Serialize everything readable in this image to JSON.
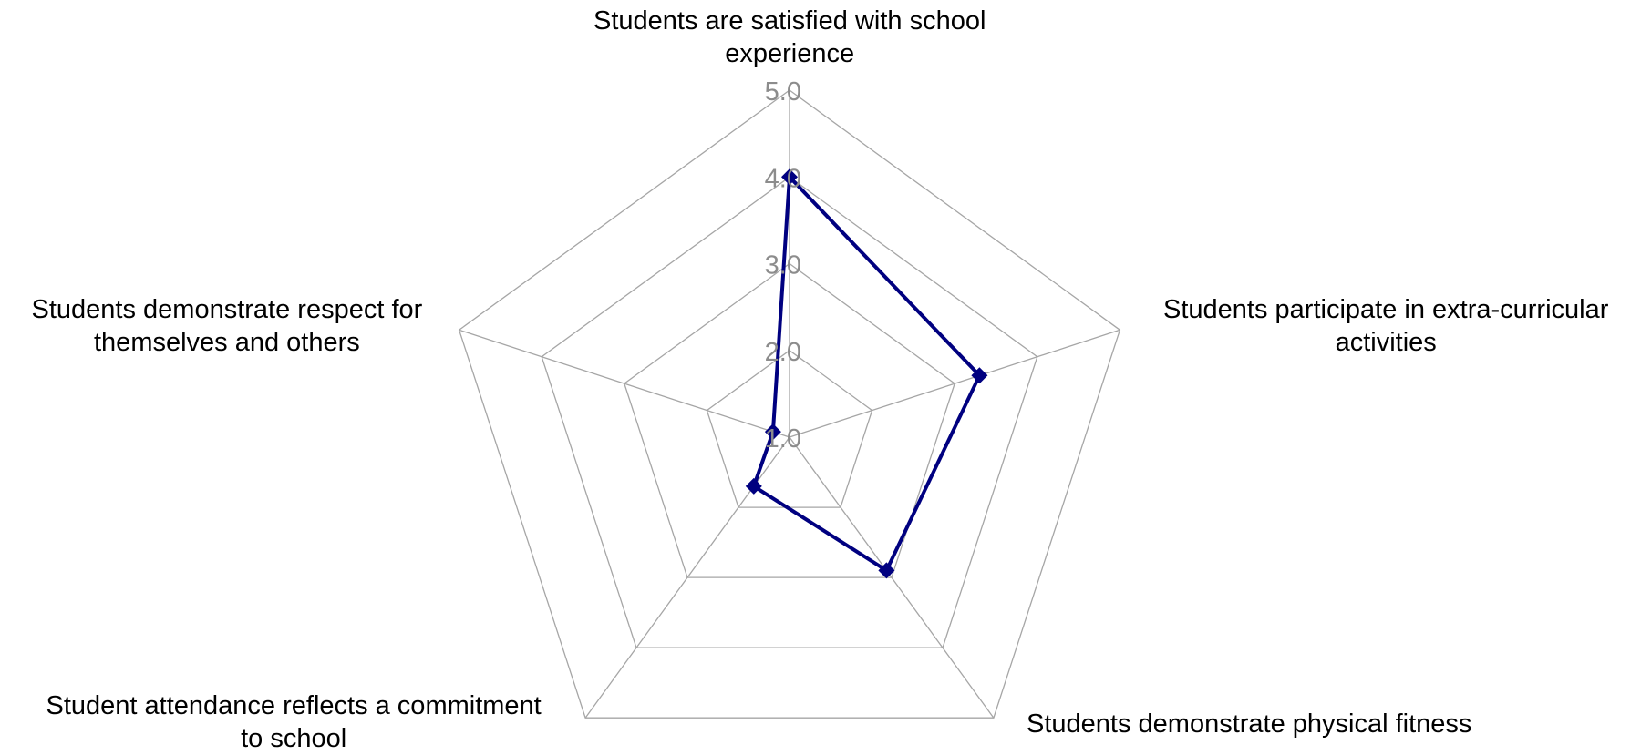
{
  "chart_data": {
    "type": "radar",
    "axes": [
      {
        "lines": [
          "Students are satisfied with school",
          "experience"
        ]
      },
      {
        "lines": [
          "Students participate in extra-curricular",
          "activities"
        ]
      },
      {
        "lines": [
          "Students demonstrate physical fitness"
        ]
      },
      {
        "lines": [
          "Student attendance reflects a commitment",
          "to school"
        ]
      },
      {
        "lines": [
          "Students demonstrate respect for",
          "themselves and others"
        ]
      }
    ],
    "categories": [
      "Students are satisfied with school experience",
      "Students participate in extra-curricular activities",
      "Students demonstrate physical fitness",
      "Student attendance reflects a commitment to school",
      "Students demonstrate respect for themselves and others"
    ],
    "series": [
      {
        "values": [
          4.0,
          3.3,
          2.9,
          1.7,
          1.2
        ],
        "color": "#000080"
      }
    ],
    "ticks": [
      "1.0",
      "2.0",
      "3.0",
      "4.0",
      "5.0"
    ],
    "rlim": [
      1.0,
      5.0
    ],
    "grid": true,
    "legend": "none",
    "grid_color": "#a6a6a6",
    "tick_color": "#8c8c8c",
    "series_color": "#000080"
  }
}
